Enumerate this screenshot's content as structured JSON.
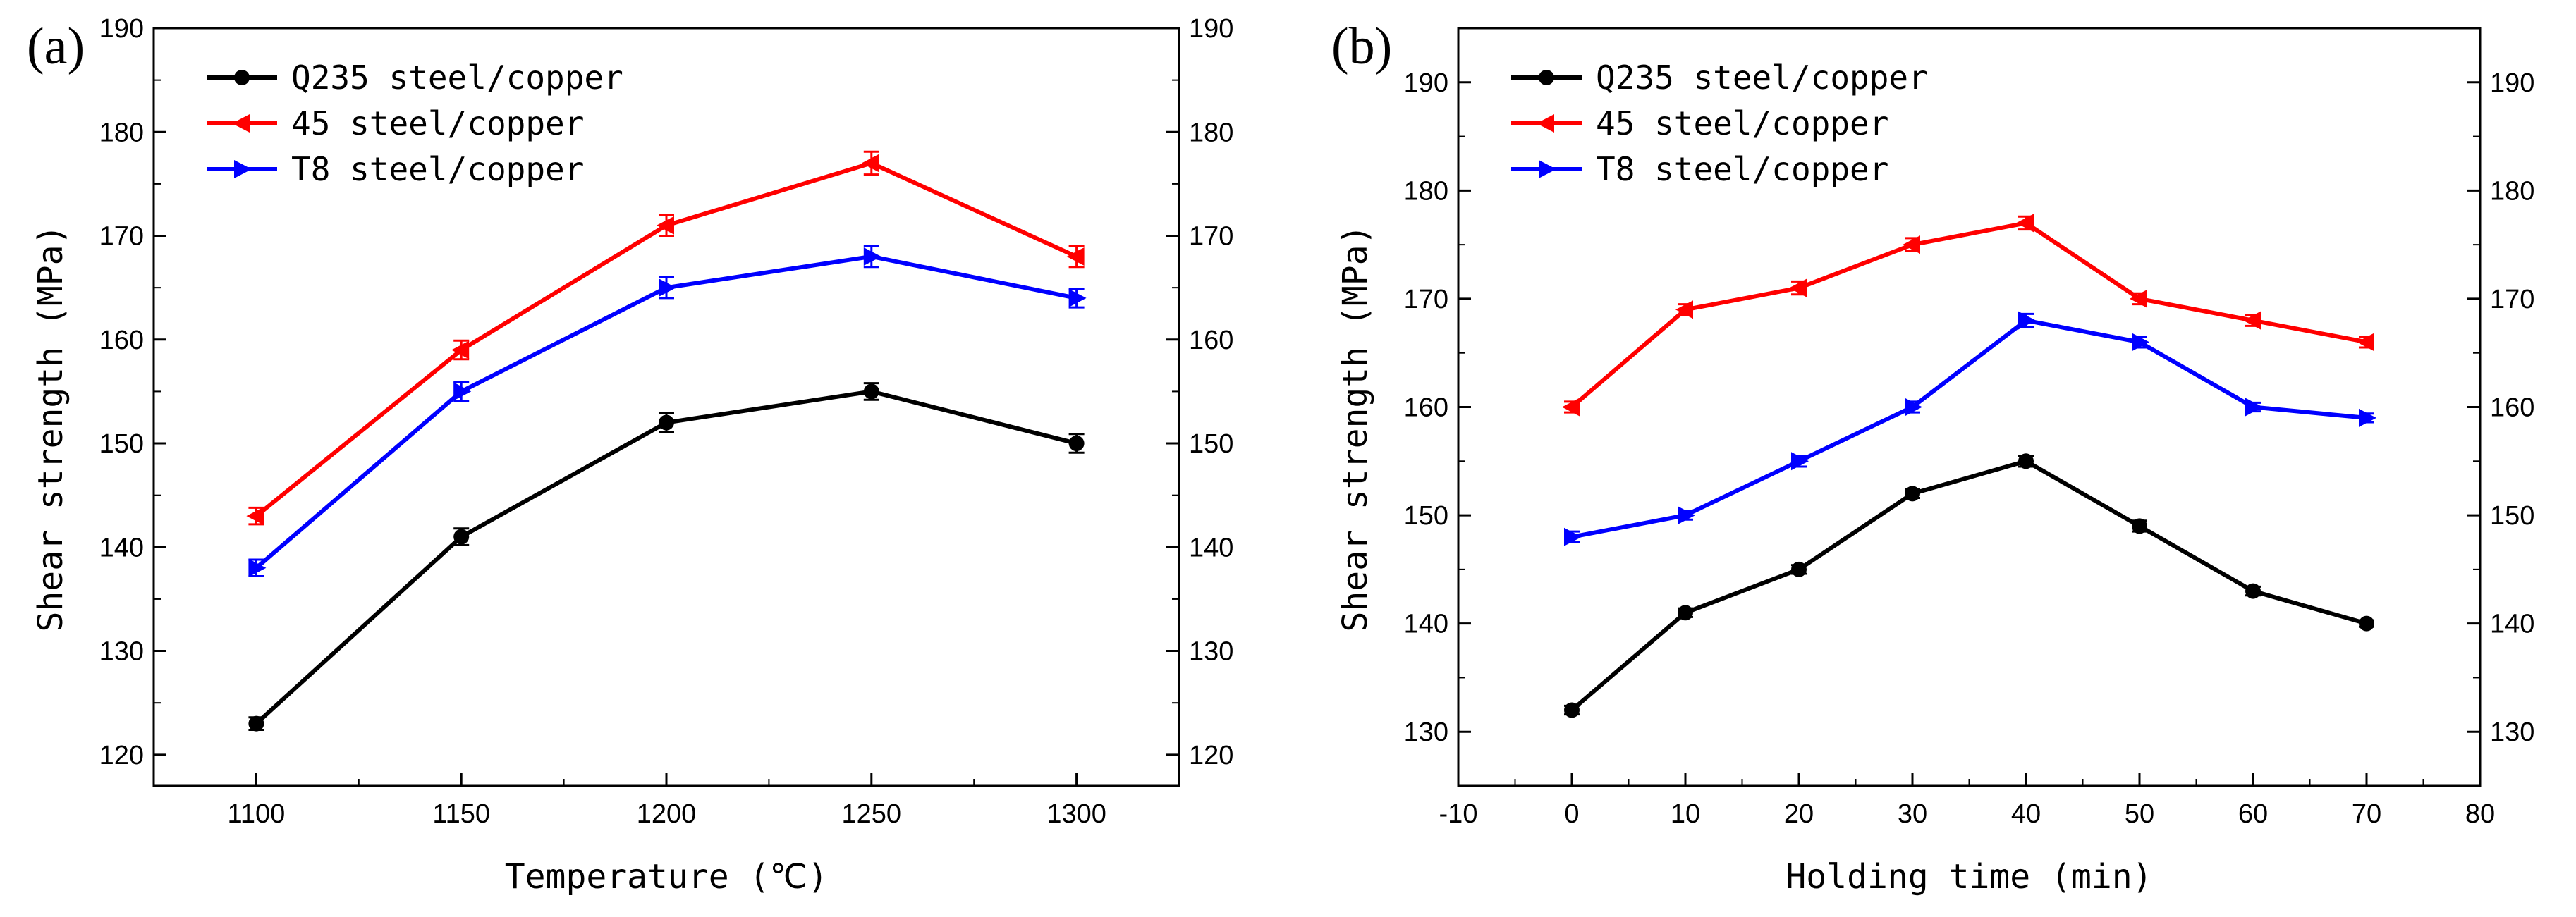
{
  "chart_data": [
    {
      "type": "line",
      "panel_label": "(a)",
      "xlabel": "Temperature (℃)",
      "ylabel": "Shear strength (MPa)",
      "x": [
        1100,
        1150,
        1200,
        1250,
        1300
      ],
      "x_ticks": [
        1100,
        1150,
        1200,
        1250,
        1300
      ],
      "x_tick_labels": [
        "1100",
        "1150",
        "1200",
        "1250",
        "1300"
      ],
      "xlim": [
        1075,
        1325
      ],
      "ylim": [
        117,
        190
      ],
      "y_ticks": [
        120,
        130,
        140,
        150,
        160,
        170,
        180,
        190
      ],
      "y_tick_labels": [
        "120",
        "130",
        "140",
        "150",
        "160",
        "170",
        "180",
        "190"
      ],
      "right_axis_ticks": true,
      "legend_position": "top-left",
      "series": [
        {
          "name": "Q235 steel/copper",
          "color": "#000000",
          "marker": "circle",
          "values": [
            123,
            141,
            152,
            155,
            150
          ],
          "errors": [
            0.6,
            0.8,
            0.9,
            0.8,
            0.9
          ]
        },
        {
          "name": "45 steel/copper",
          "color": "#ff0000",
          "marker": "triangle-left",
          "values": [
            143,
            159,
            171,
            177,
            168
          ],
          "errors": [
            0.8,
            0.9,
            1.0,
            1.1,
            1.0
          ]
        },
        {
          "name": "T8 steel/copper",
          "color": "#0000ff",
          "marker": "triangle-right",
          "values": [
            138,
            155,
            165,
            168,
            164
          ],
          "errors": [
            0.8,
            0.9,
            1.0,
            1.0,
            0.9
          ]
        }
      ]
    },
    {
      "type": "line",
      "panel_label": "(b)",
      "xlabel": "Holding time (min)",
      "ylabel": "Shear strength (MPa)",
      "x": [
        0,
        10,
        20,
        30,
        40,
        50,
        60,
        70
      ],
      "x_ticks": [
        -10,
        0,
        10,
        20,
        30,
        40,
        50,
        60,
        70,
        80
      ],
      "x_tick_labels": [
        "-10",
        "0",
        "10",
        "20",
        "30",
        "40",
        "50",
        "60",
        "70",
        "80"
      ],
      "xlim": [
        -10,
        80
      ],
      "ylim": [
        125,
        195
      ],
      "y_ticks": [
        130,
        140,
        150,
        160,
        170,
        180,
        190
      ],
      "y_tick_labels": [
        "130",
        "140",
        "150",
        "160",
        "170",
        "180",
        "190"
      ],
      "right_axis_ticks": true,
      "legend_position": "top-left",
      "series": [
        {
          "name": "Q235 steel/copper",
          "color": "#000000",
          "marker": "circle",
          "values": [
            132,
            141,
            145,
            152,
            155,
            149,
            143,
            140
          ],
          "errors": [
            0.4,
            0.4,
            0.4,
            0.4,
            0.5,
            0.5,
            0.4,
            0.3
          ]
        },
        {
          "name": "45 steel/copper",
          "color": "#ff0000",
          "marker": "triangle-left",
          "values": [
            160,
            169,
            171,
            175,
            177,
            170,
            168,
            166
          ],
          "errors": [
            0.5,
            0.5,
            0.6,
            0.6,
            0.6,
            0.5,
            0.5,
            0.5
          ]
        },
        {
          "name": "T8 steel/copper",
          "color": "#0000ff",
          "marker": "triangle-right",
          "values": [
            148,
            150,
            155,
            160,
            168,
            166,
            160,
            159
          ],
          "errors": [
            0.5,
            0.4,
            0.5,
            0.5,
            0.6,
            0.5,
            0.4,
            0.4
          ]
        }
      ]
    }
  ]
}
